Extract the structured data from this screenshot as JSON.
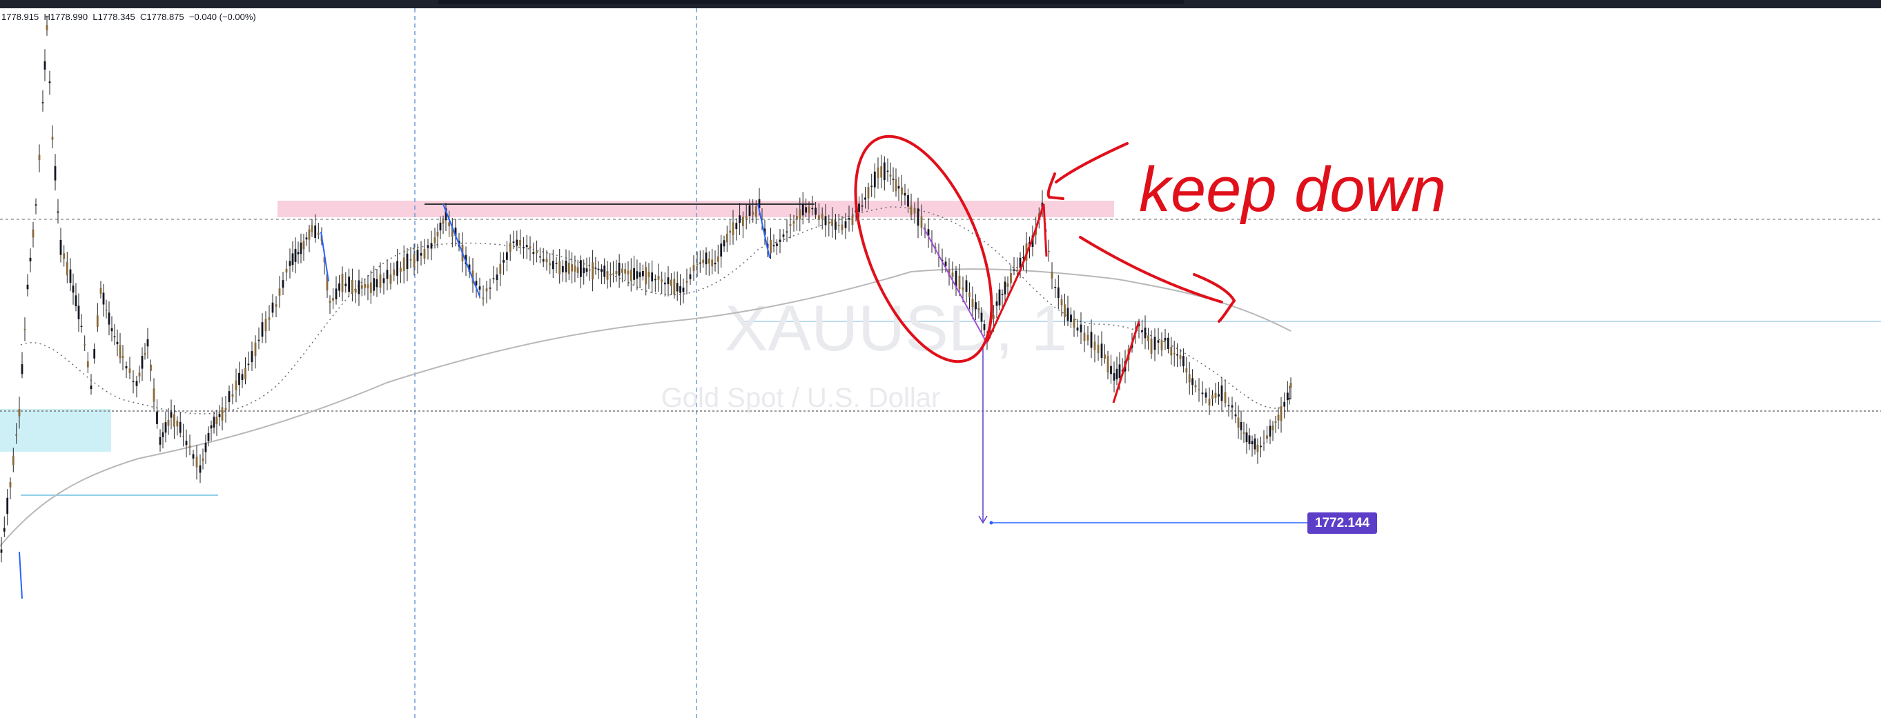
{
  "ohlc": {
    "open": "1778.915",
    "high": "1778.990",
    "low": "1778.345",
    "close": "1778.875",
    "change": "−0.040 (−0.00%)"
  },
  "watermark": {
    "symbol": "XAUUSD, 1",
    "description": "Gold Spot / U.S. Dollar"
  },
  "annotation": {
    "handwritten_text": "keep down"
  },
  "measure": {
    "price_label": "1772.144"
  },
  "colors": {
    "bull_candle": "#8a6a3a",
    "bear_candle": "#131722",
    "annotation_red": "#e0101a",
    "trend_blue": "#2962ff",
    "zone_pink": "#f8c8d8",
    "zone_cyan": "#c8eef5",
    "measure_purple": "#5c3ec9"
  }
}
